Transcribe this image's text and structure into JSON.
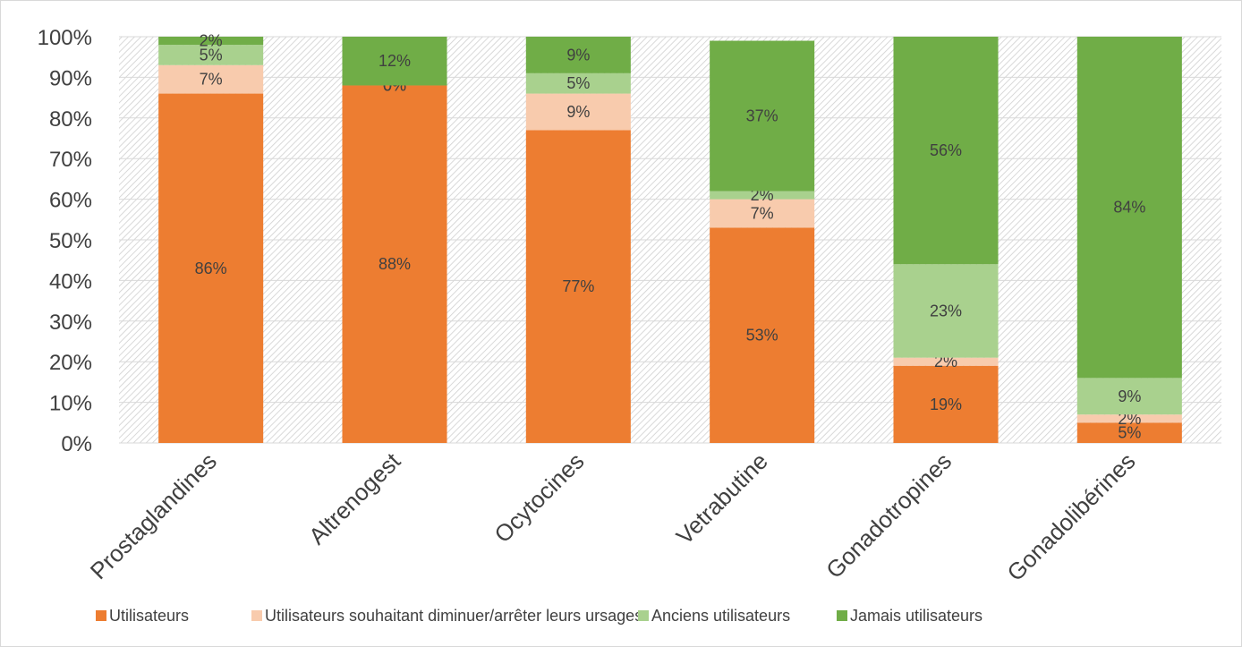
{
  "chart_data": {
    "type": "bar",
    "stacked": true,
    "title": "",
    "xlabel": "",
    "ylabel": "",
    "ylim": [
      0,
      100
    ],
    "y_ticks": [
      "0%",
      "10%",
      "20%",
      "30%",
      "40%",
      "50%",
      "60%",
      "70%",
      "80%",
      "90%",
      "100%"
    ],
    "y_tick_values": [
      0,
      10,
      20,
      30,
      40,
      50,
      60,
      70,
      80,
      90,
      100
    ],
    "categories": [
      "Prostaglandines",
      "Altrenogest",
      "Ocytocines",
      "Vetrabutine",
      "Gonadotropines",
      "Gonadolibérines"
    ],
    "series": [
      {
        "name": "Utilisateurs",
        "color": "#ED7D31",
        "values": [
          86,
          88,
          77,
          53,
          19,
          5
        ],
        "labels": [
          "86%",
          "88%",
          "77%",
          "53%",
          "19%",
          "5%"
        ]
      },
      {
        "name": "Utilisateurs souhaitant diminuer/arrêter leurs ursages",
        "color": "#F8CBAD",
        "values": [
          7,
          0,
          9,
          7,
          2,
          2
        ],
        "labels": [
          "7%",
          "0%",
          "9%",
          "7%",
          "2%",
          "2%"
        ]
      },
      {
        "name": "Anciens utilisateurs",
        "color": "#A9D18E",
        "values": [
          5,
          0,
          5,
          2,
          23,
          9
        ],
        "labels": [
          "5%",
          "0%",
          "5%",
          "2%",
          "23%",
          "9%"
        ]
      },
      {
        "name": "Jamais utilisateurs",
        "color": "#70AD47",
        "values": [
          2,
          12,
          9,
          37,
          56,
          84
        ],
        "labels": [
          "2%",
          "12%",
          "9%",
          "37%",
          "56%",
          "84%"
        ]
      }
    ],
    "legend_position": "bottom",
    "grid": true,
    "plot_background": "hatched"
  }
}
